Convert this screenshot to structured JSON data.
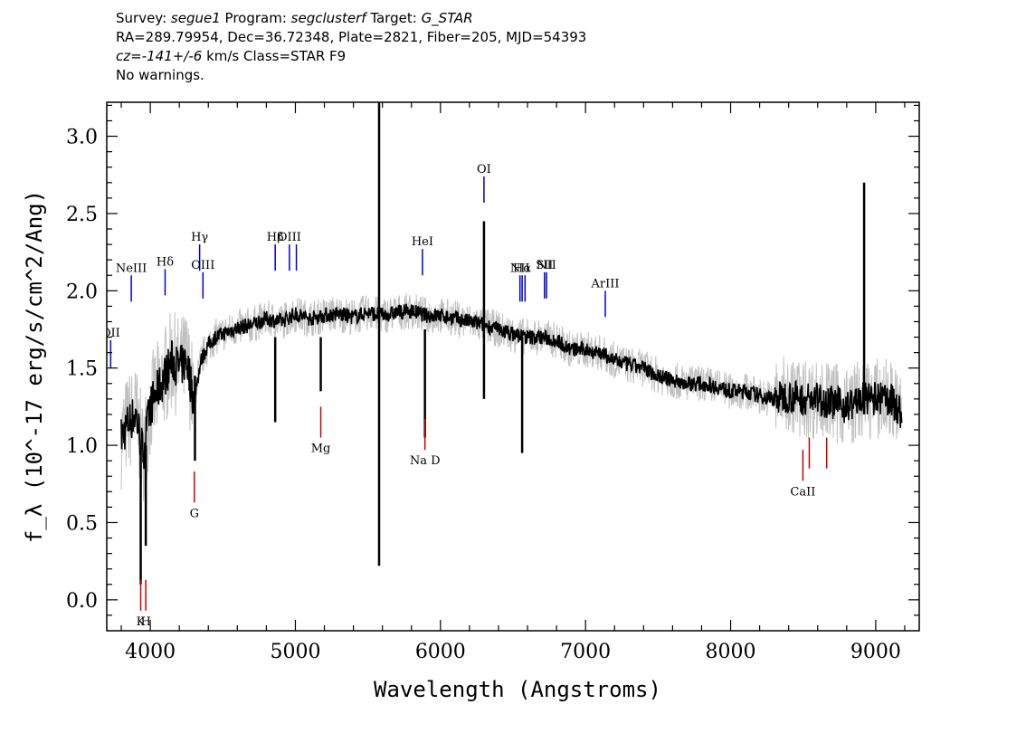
{
  "header": {
    "survey_label": "Survey:",
    "survey": "segue1",
    "program_label": "Program:",
    "program": "segclusterf",
    "target_label": "Target:",
    "target": "G_STAR",
    "line2": "RA=289.79954, Dec=36.72348, Plate=2821, Fiber=205, MJD=54393",
    "cz": "cz=-141+/-6",
    "cz_rest": " km/s Class=STAR F9",
    "line4": "No warnings."
  },
  "colors": {
    "flux": "#000000",
    "error": "#c0c0c0",
    "emission": "#0000cc",
    "absorption": "#cc0000"
  },
  "chart_data": {
    "type": "line",
    "xlabel": "Wavelength (Angstroms)",
    "ylabel": "f_λ (10^-17 erg/s/cm^2/Ang)",
    "xlim": [
      3700,
      9300
    ],
    "ylim": [
      -0.2,
      3.22
    ],
    "xticks": [
      4000,
      5000,
      6000,
      7000,
      8000,
      9000
    ],
    "yticks": [
      0.0,
      0.5,
      1.0,
      1.5,
      2.0,
      2.5,
      3.0
    ],
    "ytick_labels": [
      "0.0",
      "0.5",
      "1.0",
      "1.5",
      "2.0",
      "2.5",
      "3.0"
    ],
    "series": [
      {
        "role": "flux",
        "x": [
          3800,
          3850,
          3900,
          3950,
          4000,
          4050,
          4100,
          4150,
          4200,
          4250,
          4300,
          4350,
          4400,
          4450,
          4500,
          4600,
          4700,
          4800,
          4900,
          5000,
          5100,
          5200,
          5300,
          5400,
          5500,
          5600,
          5700,
          5800,
          5900,
          6000,
          6100,
          6200,
          6300,
          6400,
          6500,
          6600,
          6700,
          6800,
          6900,
          7000,
          7100,
          7200,
          7300,
          7400,
          7500,
          7600,
          7700,
          7800,
          7900,
          8000,
          8100,
          8200,
          8300,
          8400,
          8500,
          8600,
          8700,
          8800,
          8900,
          9000,
          9100,
          9180
        ],
        "y": [
          1.05,
          1.15,
          1.2,
          0.95,
          1.25,
          1.35,
          1.45,
          1.55,
          1.5,
          1.55,
          1.3,
          1.55,
          1.65,
          1.7,
          1.72,
          1.76,
          1.78,
          1.82,
          1.8,
          1.85,
          1.82,
          1.84,
          1.85,
          1.83,
          1.86,
          1.84,
          1.86,
          1.87,
          1.84,
          1.84,
          1.82,
          1.8,
          1.78,
          1.75,
          1.72,
          1.7,
          1.7,
          1.68,
          1.62,
          1.62,
          1.6,
          1.55,
          1.52,
          1.5,
          1.45,
          1.42,
          1.4,
          1.4,
          1.38,
          1.35,
          1.35,
          1.32,
          1.3,
          1.32,
          1.3,
          1.3,
          1.28,
          1.25,
          1.3,
          1.3,
          1.3,
          1.2
        ]
      }
    ],
    "features": [
      {
        "x": 5577,
        "ymin": 0.22,
        "ymax": 3.22,
        "role": "flux-spike"
      },
      {
        "x": 6300,
        "ymin": 1.3,
        "ymax": 2.45,
        "role": "flux-spike"
      },
      {
        "x": 8920,
        "ymin": 1.2,
        "ymax": 2.7,
        "role": "flux-spike"
      },
      {
        "x": 3934,
        "ymin": 0.1,
        "ymax": 1.0,
        "role": "flux-dip"
      },
      {
        "x": 3969,
        "ymin": 0.35,
        "ymax": 1.0,
        "role": "flux-dip"
      },
      {
        "x": 4308,
        "ymin": 0.9,
        "ymax": 1.45,
        "role": "flux-dip"
      },
      {
        "x": 4861,
        "ymin": 1.15,
        "ymax": 1.7,
        "role": "flux-dip"
      },
      {
        "x": 5175,
        "ymin": 1.35,
        "ymax": 1.7,
        "role": "flux-dip"
      },
      {
        "x": 5893,
        "ymin": 1.05,
        "ymax": 1.75,
        "role": "flux-dip"
      },
      {
        "x": 6563,
        "ymin": 0.95,
        "ymax": 1.7,
        "role": "flux-dip"
      }
    ],
    "emission_lines": [
      {
        "x": 3727,
        "ymin": 1.5,
        "ymax": 1.68,
        "label": "OII"
      },
      {
        "x": 3869,
        "ymin": 1.93,
        "ymax": 2.1,
        "label": "NeIII"
      },
      {
        "x": 4102,
        "ymin": 1.97,
        "ymax": 2.14,
        "label": "Hδ"
      },
      {
        "x": 4340,
        "ymin": 2.13,
        "ymax": 2.3,
        "label": "Hγ"
      },
      {
        "x": 4363,
        "ymin": 1.95,
        "ymax": 2.12,
        "label": "OIII"
      },
      {
        "x": 4861,
        "ymin": 2.13,
        "ymax": 2.3,
        "label": "Hβ"
      },
      {
        "x": 4959,
        "ymin": 2.13,
        "ymax": 2.3,
        "label": "OIII"
      },
      {
        "x": 5007,
        "ymin": 2.13,
        "ymax": 2.3,
        "label": ""
      },
      {
        "x": 5876,
        "ymin": 2.1,
        "ymax": 2.27,
        "label": "HeI"
      },
      {
        "x": 6300,
        "ymin": 2.57,
        "ymax": 2.74,
        "label": "OI"
      },
      {
        "x": 6548,
        "ymin": 1.93,
        "ymax": 2.1,
        "label": "NII"
      },
      {
        "x": 6563,
        "ymin": 1.93,
        "ymax": 2.1,
        "label": "Hα"
      },
      {
        "x": 6583,
        "ymin": 1.93,
        "ymax": 2.1,
        "label": ""
      },
      {
        "x": 6717,
        "ymin": 1.95,
        "ymax": 2.12,
        "label": "SII"
      },
      {
        "x": 6731,
        "ymin": 1.95,
        "ymax": 2.12,
        "label": "NII"
      },
      {
        "x": 7136,
        "ymin": 1.83,
        "ymax": 2.0,
        "label": "ArIII"
      }
    ],
    "absorption_lines": [
      {
        "x": 3934,
        "ymin": -0.07,
        "ymax": 0.13,
        "label": "K"
      },
      {
        "x": 3969,
        "ymin": -0.07,
        "ymax": 0.13,
        "label": "H"
      },
      {
        "x": 4304,
        "ymin": 0.63,
        "ymax": 0.83,
        "label": "G"
      },
      {
        "x": 5175,
        "ymin": 1.05,
        "ymax": 1.25,
        "label": "Mg"
      },
      {
        "x": 5893,
        "ymin": 0.97,
        "ymax": 1.17,
        "label": "Na D"
      },
      {
        "x": 8498,
        "ymin": 0.77,
        "ymax": 0.97,
        "label": "CaII"
      },
      {
        "x": 8542,
        "ymin": 0.85,
        "ymax": 1.05,
        "label": ""
      },
      {
        "x": 8662,
        "ymin": 0.85,
        "ymax": 1.05,
        "label": ""
      }
    ]
  }
}
